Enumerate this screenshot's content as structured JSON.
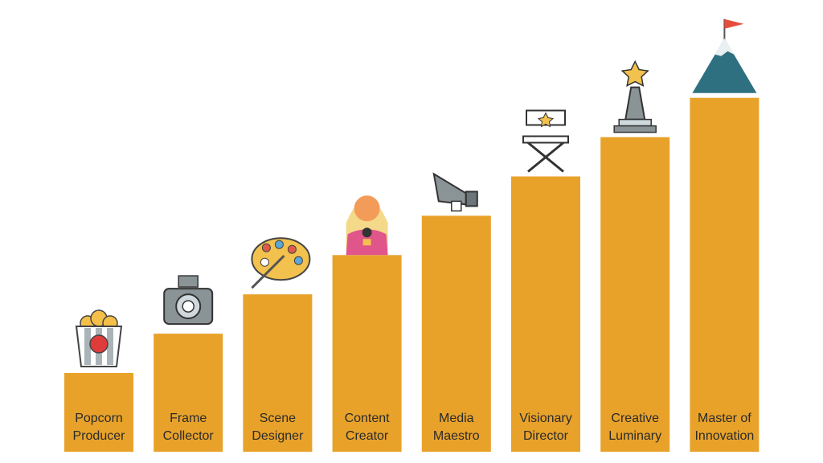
{
  "steps": [
    {
      "lines": [
        "Popcorn",
        "Producer"
      ]
    },
    {
      "lines": [
        "Frame",
        "Collector"
      ]
    },
    {
      "lines": [
        "Scene",
        "Designer"
      ]
    },
    {
      "lines": [
        "Content",
        "Creator"
      ]
    },
    {
      "lines": [
        "Media",
        "Maestro"
      ]
    },
    {
      "lines": [
        "Visionary",
        "Director"
      ]
    },
    {
      "lines": [
        "Creative",
        "Luminary"
      ]
    },
    {
      "lines": [
        "Master of",
        "Innovation"
      ]
    }
  ]
}
